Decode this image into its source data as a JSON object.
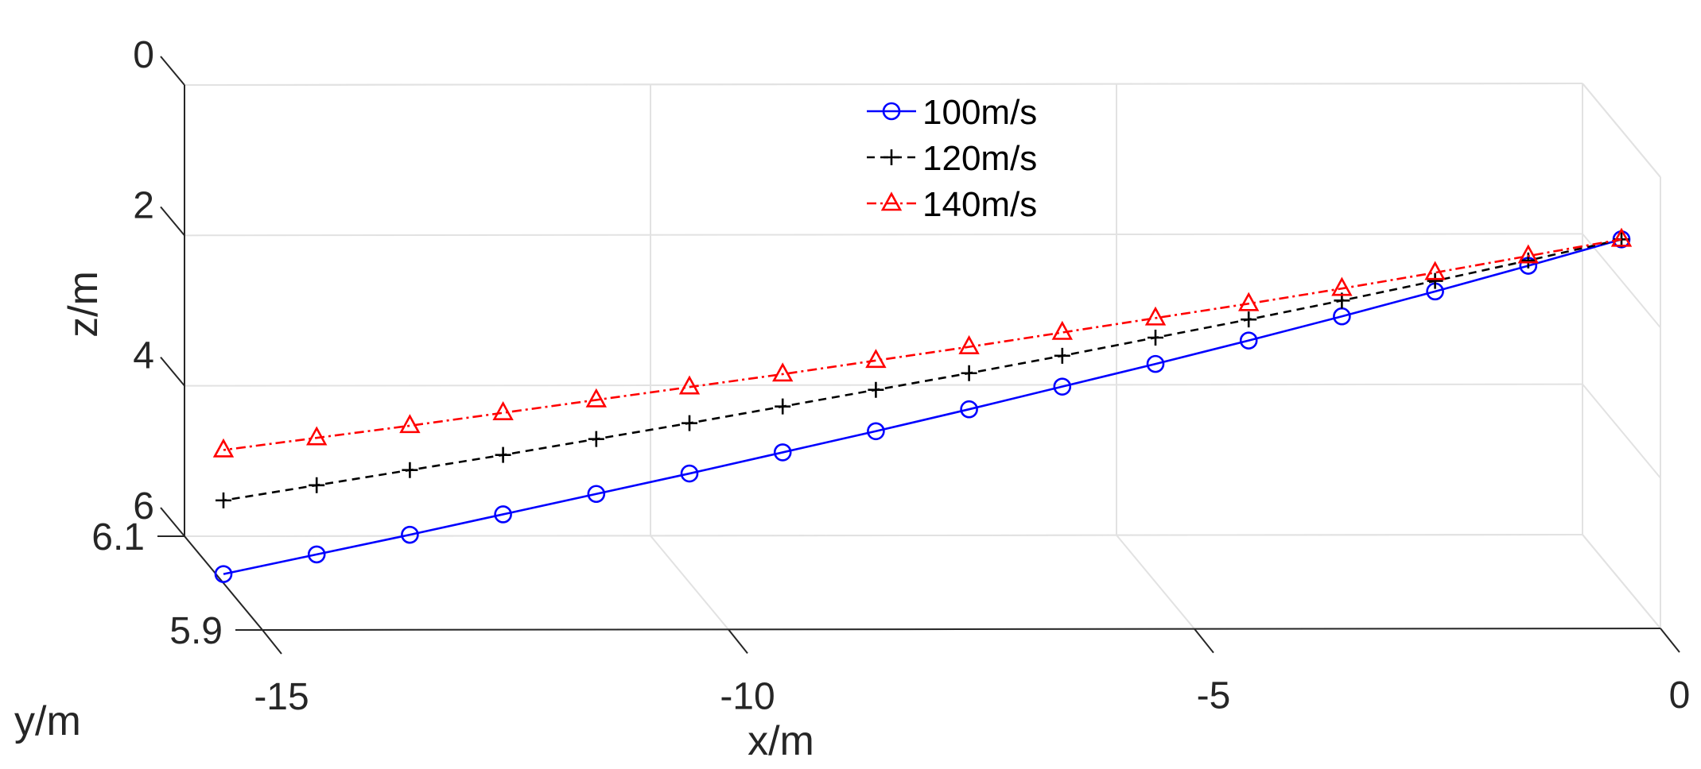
{
  "chart_data": {
    "type": "line",
    "projection": "3d",
    "xlabel": "x/m",
    "ylabel": "y/m",
    "zlabel": "z/m",
    "xlim": [
      -15,
      0
    ],
    "ylim": [
      5.9,
      6.1
    ],
    "zlim": [
      0,
      6
    ],
    "z_direction": "reverse",
    "grid": true,
    "x_ticks": [
      -15,
      -10,
      -5,
      0
    ],
    "x_tick_labels": [
      "-15",
      "-10",
      "-5",
      "0"
    ],
    "y_ticks": [
      5.9,
      6.1
    ],
    "y_tick_labels": [
      "5.9",
      "6.1"
    ],
    "z_ticks": [
      0,
      2,
      4,
      6
    ],
    "z_tick_labels": [
      "0",
      "2",
      "4",
      "6"
    ],
    "legend_position": "top-center",
    "x": [
      0,
      -1,
      -2,
      -3,
      -4,
      -5,
      -6,
      -7,
      -8,
      -9,
      -10,
      -11,
      -12,
      -13,
      -14,
      -15
    ],
    "series": [
      {
        "name": "100m/s",
        "color": "#0000ff",
        "line_style": "solid",
        "marker": "circle",
        "y": 6.0,
        "z": [
          1.45,
          1.8,
          2.14,
          2.47,
          2.79,
          3.1,
          3.4,
          3.7,
          3.99,
          4.27,
          4.55,
          4.82,
          5.09,
          5.36,
          5.62,
          5.88
        ]
      },
      {
        "name": "120m/s",
        "color": "#000000",
        "line_style": "dashed",
        "marker": "plus",
        "y": 6.0,
        "z": [
          1.45,
          1.73,
          2.0,
          2.26,
          2.51,
          2.75,
          2.99,
          3.22,
          3.44,
          3.66,
          3.88,
          4.09,
          4.3,
          4.5,
          4.7,
          4.9
        ]
      },
      {
        "name": "140m/s",
        "color": "#ff0000",
        "line_style": "dash-dot",
        "marker": "triangle",
        "y": 6.0,
        "z": [
          1.45,
          1.67,
          1.89,
          2.1,
          2.3,
          2.49,
          2.68,
          2.87,
          3.05,
          3.23,
          3.4,
          3.57,
          3.74,
          3.91,
          4.07,
          4.23
        ]
      }
    ]
  }
}
